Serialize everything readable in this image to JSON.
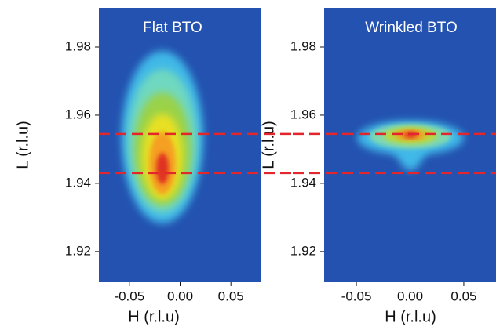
{
  "chart_data": [
    {
      "type": "map",
      "title": "Flat BTO",
      "xlabel": "H (r.l.u)",
      "ylabel": "L (r.l.u)",
      "xlim": [
        -0.08,
        0.08
      ],
      "ylim": [
        1.911,
        1.9915
      ],
      "xticks": [
        -0.05,
        {
          "value": 0,
          "label": "0.00"
        },
        0.05
      ],
      "yticks": [
        1.92,
        1.94,
        1.96,
        1.98
      ],
      "background": "#2352b0",
      "hlines": [
        1.9545,
        1.943
      ],
      "hline_color": "#e3262b"
    },
    {
      "type": "map",
      "title": "Wrinkled BTO",
      "xlabel": "H (r.l.u)",
      "ylabel": "L (r.l.u)",
      "xlim": [
        -0.08,
        0.08
      ],
      "ylim": [
        1.911,
        1.9915
      ],
      "xticks": [
        -0.05,
        {
          "value": 0,
          "label": "0.00"
        },
        0.05
      ],
      "yticks": [
        1.92,
        1.94,
        1.96,
        1.98
      ],
      "background": "#2352b0",
      "hlines": [
        1.9545,
        1.943
      ],
      "hline_color": "#e3262b"
    }
  ]
}
